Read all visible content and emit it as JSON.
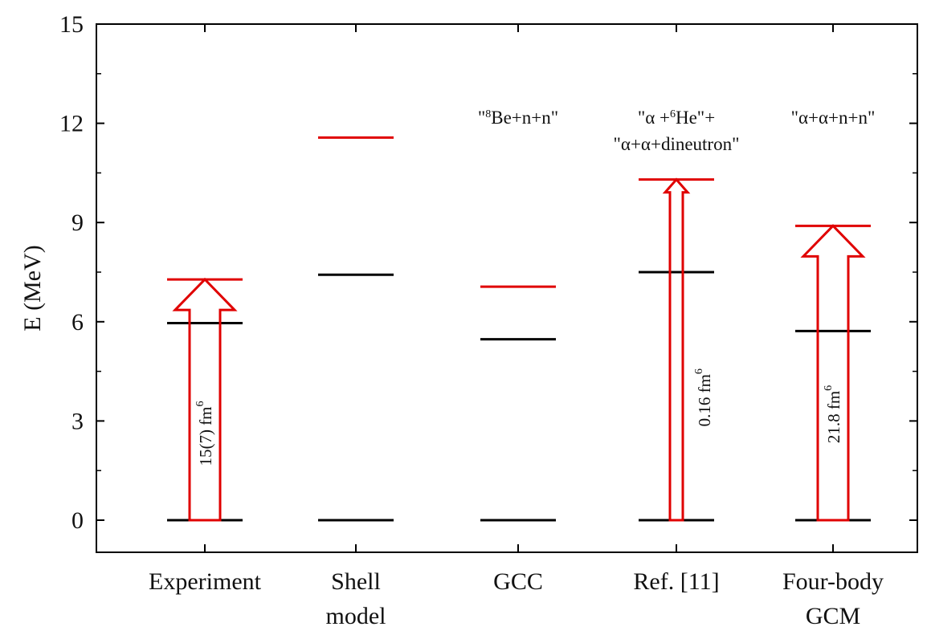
{
  "chart_data": {
    "type": "level-scheme",
    "ylabel": "E (MeV)",
    "ylim": [
      -1,
      15
    ],
    "yticks": [
      0,
      3,
      6,
      9,
      12,
      15
    ],
    "ytick_labels": [
      "0",
      "3",
      "6",
      "9",
      "12",
      "15"
    ],
    "columns": [
      {
        "label_lines": [
          "Experiment"
        ],
        "levels": [
          {
            "value": 0,
            "color": "#000000"
          },
          {
            "value": 5.96,
            "color": "#000000"
          },
          {
            "value": 7.28,
            "color": "#e00000"
          }
        ],
        "arrow": {
          "from": 0,
          "to": 7.28,
          "style": "wide",
          "label": "15(7) fm",
          "label_sup": "6"
        }
      },
      {
        "label_lines": [
          "Shell",
          "model"
        ],
        "levels": [
          {
            "value": 0,
            "color": "#000000"
          },
          {
            "value": 7.42,
            "color": "#000000"
          },
          {
            "value": 11.57,
            "color": "#e00000"
          }
        ]
      },
      {
        "label_lines": [
          "GCC"
        ],
        "annotation_lines": [
          {
            "parts": [
              {
                "t": "\""
              },
              {
                "t": "8",
                "sup": true
              },
              {
                "t": "Be+n+n\""
              }
            ]
          }
        ],
        "levels": [
          {
            "value": 0,
            "color": "#000000"
          },
          {
            "value": 5.47,
            "color": "#000000"
          },
          {
            "value": 7.06,
            "color": "#e00000"
          }
        ]
      },
      {
        "label_lines": [
          "Ref. [11]"
        ],
        "annotation_lines": [
          {
            "parts": [
              {
                "t": "\"α +"
              },
              {
                "t": "6",
                "sup": true
              },
              {
                "t": "He\"+"
              }
            ]
          },
          {
            "parts": [
              {
                "t": "\"α+α+dineutron\""
              }
            ]
          }
        ],
        "levels": [
          {
            "value": 0,
            "color": "#000000"
          },
          {
            "value": 7.5,
            "color": "#000000"
          },
          {
            "value": 10.3,
            "color": "#e00000"
          }
        ],
        "arrow": {
          "from": 0,
          "to": 10.3,
          "style": "narrow",
          "label": "0.16 fm",
          "label_sup": "6"
        }
      },
      {
        "label_lines": [
          "Four-body",
          "GCM"
        ],
        "annotation_lines": [
          {
            "parts": [
              {
                "t": "\"α+α+n+n\""
              }
            ]
          }
        ],
        "levels": [
          {
            "value": 0,
            "color": "#000000"
          },
          {
            "value": 5.72,
            "color": "#000000"
          },
          {
            "value": 8.9,
            "color": "#e00000"
          }
        ],
        "arrow": {
          "from": 0,
          "to": 8.9,
          "style": "wide",
          "label": "21.8 fm",
          "label_sup": "6"
        }
      }
    ],
    "colors": {
      "level_ground": "#000000",
      "level_excited": "#e00000",
      "arrow": "#e00000",
      "axis": "#000000"
    }
  }
}
